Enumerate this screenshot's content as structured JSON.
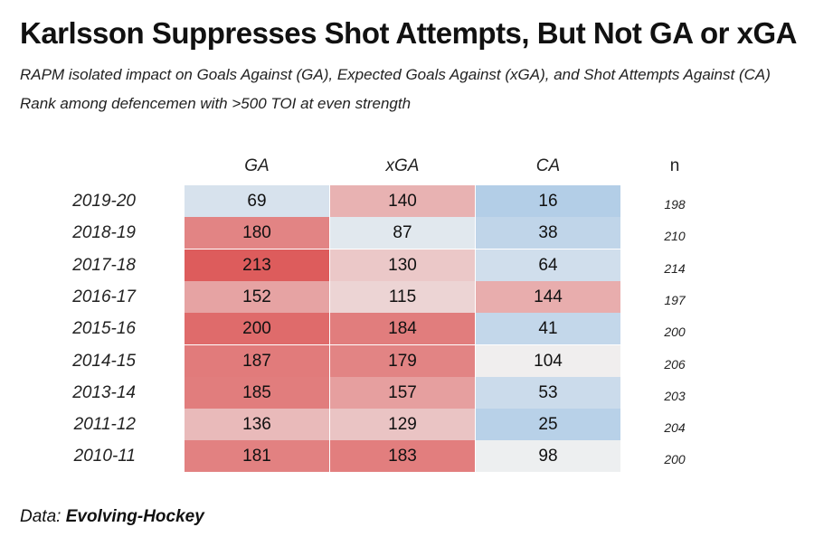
{
  "header": {
    "title": "Karlsson Suppresses Shot Attempts, But Not GA or xGA",
    "subtitle_1": "RAPM isolated impact on Goals Against (GA), Expected Goals Against (xGA), and Shot Attempts Against (CA)",
    "subtitle_2": "Rank among defencemen with >500 TOI at even strength"
  },
  "footer": {
    "prefix": "Data: ",
    "source": "Evolving-Hockey"
  },
  "colors": {
    "high": "#dd5a5a",
    "mid": "#f0f0f0",
    "low": "#a9c8e6"
  },
  "chart_data": {
    "type": "heatmap",
    "columns": [
      "GA",
      "xGA",
      "CA",
      "n"
    ],
    "rows": [
      "2019-20",
      "2018-19",
      "2017-18",
      "2016-17",
      "2015-16",
      "2014-15",
      "2013-14",
      "2011-12",
      "2010-11"
    ],
    "values": [
      [
        69,
        140,
        16
      ],
      [
        180,
        87,
        38
      ],
      [
        213,
        130,
        64
      ],
      [
        152,
        115,
        144
      ],
      [
        200,
        184,
        41
      ],
      [
        187,
        179,
        104
      ],
      [
        185,
        157,
        53
      ],
      [
        136,
        129,
        25
      ],
      [
        181,
        183,
        98
      ]
    ],
    "n": [
      198,
      210,
      214,
      197,
      200,
      206,
      203,
      204,
      200
    ]
  }
}
